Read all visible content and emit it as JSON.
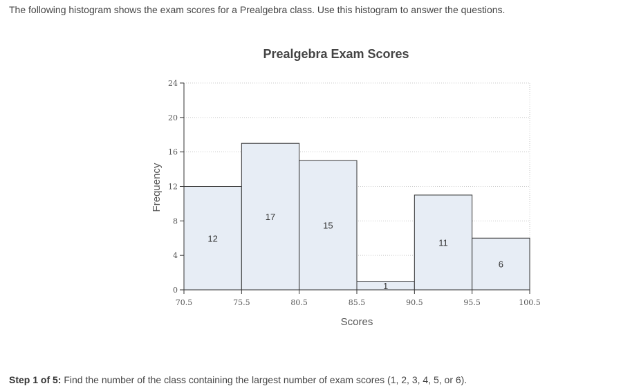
{
  "intro_text": "The following histogram shows the exam scores for a Prealgebra class. Use this histogram to answer the questions.",
  "step": {
    "label": "Step 1 of 5:",
    "text": " Find the number of the class containing the largest number of exam scores (1, 2, 3, 4, 5, or 6)."
  },
  "colors": {
    "bar_fill": "#e7edf5",
    "bar_stroke": "#333333",
    "grid": "#c8c8c8"
  },
  "chart_data": {
    "type": "bar",
    "title": "Prealgebra Exam Scores",
    "xlabel": "Scores",
    "ylabel": "Frequency",
    "bin_edges": [
      70.5,
      75.5,
      80.5,
      85.5,
      90.5,
      95.5,
      100.5
    ],
    "x_tick_labels": [
      "70.5",
      "75.5",
      "80.5",
      "85.5",
      "90.5",
      "95.5",
      "100.5"
    ],
    "values": [
      12,
      17,
      15,
      1,
      11,
      6
    ],
    "data_labels": [
      "12",
      "17",
      "15",
      "1",
      "11",
      "6"
    ],
    "ylim": [
      0,
      24
    ],
    "y_ticks": [
      0,
      4,
      8,
      12,
      16,
      20,
      24
    ],
    "y_tick_labels": [
      "0",
      "4",
      "8",
      "12",
      "16",
      "20",
      "24"
    ],
    "grid": true,
    "grid_style": "dotted"
  }
}
